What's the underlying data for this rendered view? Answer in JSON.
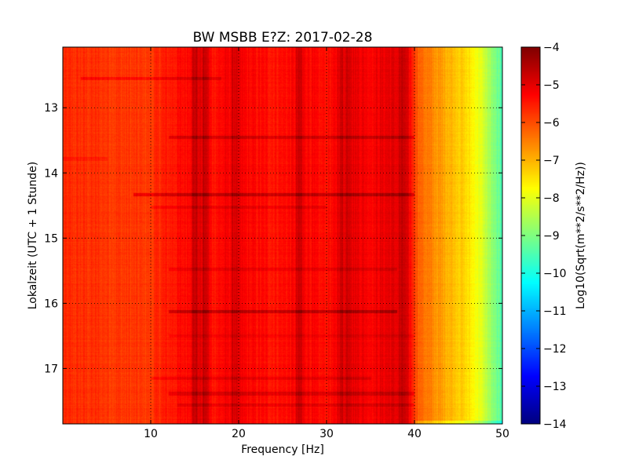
{
  "chart_data": {
    "type": "heatmap",
    "title": "BW MSBB E?Z: 2017-02-28",
    "xlabel": "Frequency [Hz]",
    "ylabel": "Lokalzeit (UTC + 1 Stunde)",
    "xlim": [
      0,
      50
    ],
    "ylim": [
      12.07,
      17.85
    ],
    "y_inverted": true,
    "x_ticks": [
      10,
      20,
      30,
      40,
      50
    ],
    "y_ticks": [
      13,
      14,
      15,
      16,
      17
    ],
    "grid": true,
    "colormap": "jet",
    "colorbar": {
      "label": "Log10(Sqrt(m**2/s**2/Hz))",
      "min": -14,
      "max": -4,
      "ticks": [
        -4,
        -5,
        -6,
        -7,
        -8,
        -9,
        -10,
        -11,
        -12,
        -13,
        -14
      ]
    },
    "spectrum_profile": {
      "frequency_hz": [
        0,
        2,
        5,
        8,
        10,
        11,
        12,
        14,
        15,
        16,
        17,
        18,
        19.5,
        21,
        24,
        26,
        27,
        29,
        31,
        32,
        33,
        35,
        37,
        38,
        39,
        39.8,
        40.5,
        42,
        44,
        45.5,
        47,
        48,
        49,
        50
      ],
      "level": [
        -5.7,
        -5.7,
        -5.75,
        -5.8,
        -5.8,
        -5.6,
        -5.5,
        -5.3,
        -5.0,
        -5.0,
        -5.4,
        -5.3,
        -5.1,
        -5.3,
        -5.4,
        -5.3,
        -5.1,
        -5.4,
        -5.3,
        -4.9,
        -5.0,
        -5.2,
        -5.0,
        -5.0,
        -4.9,
        -5.6,
        -6.2,
        -6.6,
        -7.0,
        -7.3,
        -7.8,
        -8.3,
        -9.0,
        -9.5
      ]
    },
    "time_features": {
      "hour": [
        12.55,
        13.45,
        13.78,
        14.33,
        14.52,
        15.47,
        16.12,
        16.5,
        17.15,
        17.38,
        17.55
      ],
      "level_offset": [
        0.4,
        0.5,
        0.2,
        0.7,
        0.3,
        0.3,
        0.7,
        0.2,
        0.3,
        0.4,
        0.3
      ],
      "freq_range_hz": [
        [
          2,
          18
        ],
        [
          12,
          40
        ],
        [
          0,
          5
        ],
        [
          8,
          40
        ],
        [
          10,
          30
        ],
        [
          12,
          38
        ],
        [
          12,
          38
        ],
        [
          12,
          40
        ],
        [
          10,
          35
        ],
        [
          12,
          40
        ],
        [
          13,
          40
        ]
      ]
    },
    "frequency_features": {
      "frequency_hz": [
        15,
        16.2,
        19.5,
        26.8,
        31.5,
        32.5,
        38.5
      ],
      "level_offset": [
        0.3,
        0.3,
        0.25,
        0.3,
        0.25,
        0.2,
        0.2
      ]
    }
  }
}
